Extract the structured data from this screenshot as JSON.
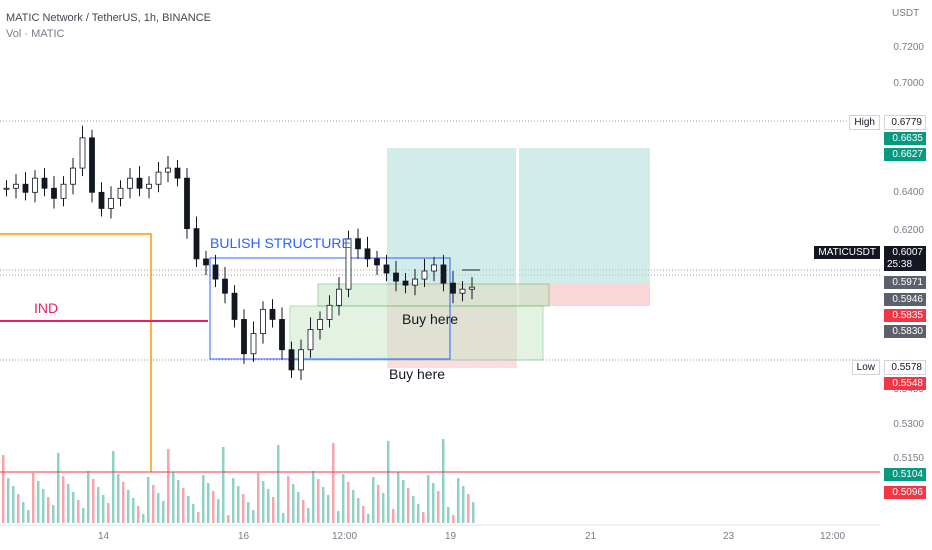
{
  "header": {
    "title": "MATIC Network / TetherUS, 1h, BINANCE",
    "volume_label": "Vol · MATIC"
  },
  "price_axis": {
    "currency": "USDT",
    "ticks": [
      "0.7200",
      "0.7000",
      "0.6400",
      "0.6200",
      "0.5450",
      "0.5300",
      "0.5150"
    ]
  },
  "time_axis": {
    "ticks": [
      "14",
      "16",
      "12:00",
      "19",
      "21",
      "23",
      "12:00"
    ]
  },
  "price_labels": [
    {
      "text": "High",
      "value": "0.6779",
      "kind": "outline",
      "price": 0.6779
    },
    {
      "text": "",
      "value": "0.6635",
      "kind": "green",
      "price": 0.6635
    },
    {
      "text": "",
      "value": "0.6627",
      "kind": "green",
      "price": 0.6627
    },
    {
      "text": "MATICUSDT",
      "value": "0.6007",
      "kind": "black",
      "price": 0.6007,
      "countdown": "25:38"
    },
    {
      "text": "",
      "value": "0.5971",
      "kind": "gray",
      "price": 0.5971
    },
    {
      "text": "",
      "value": "0.5946",
      "kind": "gray",
      "price": 0.5946
    },
    {
      "text": "",
      "value": "0.5835",
      "kind": "red",
      "price": 0.5835
    },
    {
      "text": "",
      "value": "0.5830",
      "kind": "gray",
      "price": 0.583
    },
    {
      "text": "Low",
      "value": "0.5578",
      "kind": "outline",
      "price": 0.5578
    },
    {
      "text": "",
      "value": "0.5548",
      "kind": "red",
      "price": 0.5548
    },
    {
      "text": "",
      "value": "0.5104",
      "kind": "green",
      "price": 0.5104
    },
    {
      "text": "",
      "value": "0.5096",
      "kind": "red",
      "price": 0.5096
    }
  ],
  "annotations": {
    "bulish_structure": "BULISH STRUCTURE",
    "ind": "IND",
    "buy_here_1": "Buy here",
    "buy_here_2": "Buy here"
  },
  "colors": {
    "up": "#089981",
    "down": "#f23645",
    "candle": "#131722",
    "blue": "#2962ff",
    "orange": "#ff9800",
    "pink": "#e91e63",
    "green_zone": "#b2dfdb",
    "red_zone": "#f7c6c9",
    "light_green": "#c8e6c9"
  },
  "chart_data": {
    "type": "candlestick",
    "title": "MATIC Network / TetherUS, 1h, BINANCE",
    "ylim": [
      0.5,
      0.74
    ],
    "x_ticks": [
      "14",
      "16",
      "12:00",
      "19",
      "21",
      "23",
      "12:00"
    ],
    "key_levels": {
      "high": 0.6779,
      "low": 0.5578,
      "last": 0.6007,
      "entry": 0.5971
    },
    "closes": [
      0.65,
      0.652,
      0.648,
      0.655,
      0.65,
      0.645,
      0.652,
      0.66,
      0.675,
      0.648,
      0.64,
      0.645,
      0.65,
      0.655,
      0.65,
      0.652,
      0.658,
      0.66,
      0.655,
      0.63,
      0.615,
      0.612,
      0.605,
      0.598,
      0.585,
      0.568,
      0.578,
      0.59,
      0.585,
      0.57,
      0.56,
      0.57,
      0.58,
      0.585,
      0.592,
      0.6,
      0.625,
      0.62,
      0.615,
      0.612,
      0.608,
      0.604,
      0.602,
      0.605,
      0.609,
      0.612,
      0.603,
      0.598,
      0.6,
      0.601
    ]
  }
}
